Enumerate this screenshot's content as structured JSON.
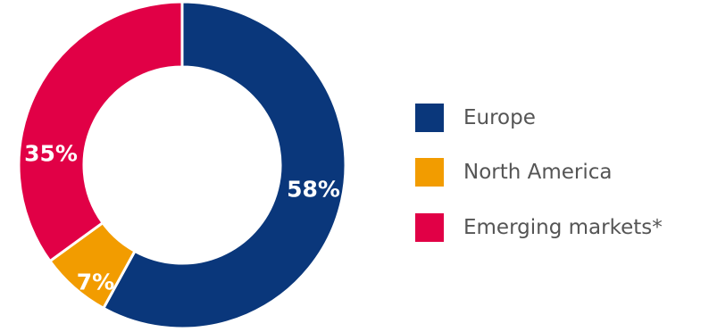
{
  "colors": {
    "europe": "#0a377b",
    "north_america": "#f29c00",
    "emerging": "#e10046"
  },
  "chart_data": {
    "type": "pie",
    "variant": "donut",
    "title": "",
    "slices": [
      {
        "name": "Europe",
        "value": 58,
        "label": "58%",
        "color": "#0a377b"
      },
      {
        "name": "North America",
        "value": 7,
        "label": "7%",
        "color": "#f29c00"
      },
      {
        "name": "Emerging markets*",
        "value": 35,
        "label": "35%",
        "color": "#e10046"
      }
    ],
    "legend_placement": "right"
  },
  "legend": {
    "items": [
      {
        "label": "Europe",
        "color": "#0a377b"
      },
      {
        "label": "North America",
        "color": "#f29c00"
      },
      {
        "label": "Emerging markets*",
        "color": "#e10046"
      }
    ]
  }
}
